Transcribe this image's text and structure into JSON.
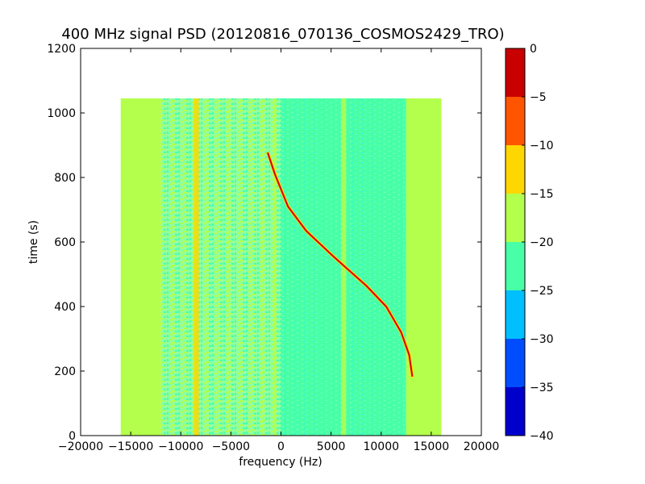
{
  "chart_data": {
    "type": "heatmap",
    "title": "400 MHz signal PSD (20120816_070136_COSMOS2429_TRO)",
    "xlabel": "frequency (Hz)",
    "ylabel": "time (s)",
    "xlim": [
      -20000,
      20000
    ],
    "ylim": [
      0,
      1200
    ],
    "xticks": [
      -20000,
      -15000,
      -10000,
      -5000,
      0,
      5000,
      10000,
      15000,
      20000
    ],
    "yticks": [
      0,
      200,
      400,
      600,
      800,
      1000,
      1200
    ],
    "data_extent": {
      "x": [
        -16000,
        16000
      ],
      "y": [
        0,
        1045
      ]
    },
    "colorbar": {
      "levels": [
        -40,
        -35,
        -30,
        -25,
        -20,
        -15,
        -10,
        -5,
        0
      ],
      "colors": [
        "#0000cd",
        "#004dff",
        "#00bfff",
        "#48ffa8",
        "#b4ff4b",
        "#ffd700",
        "#ff5500",
        "#c80000"
      ]
    },
    "regions": [
      {
        "x": [
          -16000,
          -12000
        ],
        "level": "-20 to -15"
      },
      {
        "x": [
          -12000,
          0
        ],
        "level": "mixed -25 to -15"
      },
      {
        "x": [
          0,
          12500
        ],
        "level": "-25 to -20"
      },
      {
        "x": [
          12500,
          16000
        ],
        "level": "-20 to -15"
      }
    ],
    "vertical_lines": [
      {
        "name": "line-a",
        "x": [
          -8700,
          -8200
        ],
        "y": [
          0,
          1045
        ],
        "level": "-15 to -10"
      },
      {
        "name": "line-b",
        "x": [
          -700,
          -500
        ],
        "y": [
          0,
          1045
        ],
        "level": "-20 to -15"
      },
      {
        "name": "line-c",
        "x": [
          6000,
          6500
        ],
        "y": [
          0,
          1045
        ],
        "level": "-20 to -15"
      }
    ],
    "signal_trace": {
      "level": "-5 to 0",
      "points": [
        [
          -1300,
          875
        ],
        [
          -600,
          810
        ],
        [
          700,
          710
        ],
        [
          2500,
          635
        ],
        [
          5000,
          562
        ],
        [
          6500,
          520
        ],
        [
          8500,
          465
        ],
        [
          10500,
          400
        ],
        [
          12000,
          320
        ],
        [
          12800,
          250
        ],
        [
          13100,
          185
        ]
      ]
    }
  }
}
